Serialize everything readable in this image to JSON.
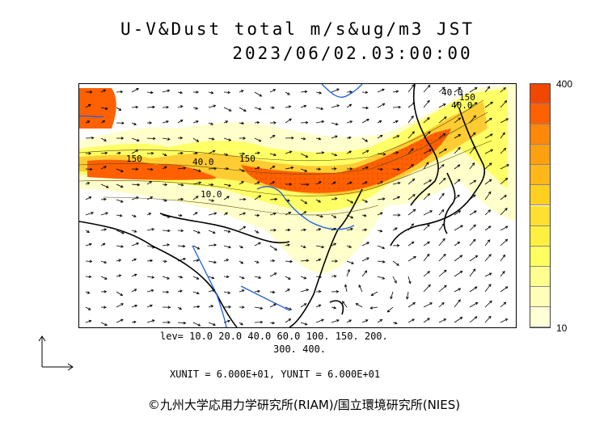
{
  "title": {
    "line1": "U-V&Dust total m/s&ug/m3 JST",
    "line2": "2023/06/02.03:00:00"
  },
  "legend": {
    "max_label": "400",
    "min_label": "10",
    "colors": [
      "#ffffd8",
      "#ffffb8",
      "#ffff90",
      "#ffff60",
      "#fff040",
      "#ffe030",
      "#ffd020",
      "#ffb818",
      "#ffa010",
      "#ff8808",
      "#ff6000",
      "#f04800"
    ]
  },
  "levels_line1": "lev= 10.0 20.0 40.0 60.0 100. 150. 200.",
  "levels_line2": "300. 400.",
  "units_line": "XUNIT = 6.000E+01, YUNIT = 6.000E+01",
  "contour_labels": [
    "150",
    "40.0",
    "150",
    "40.0",
    "10.0",
    "40.0",
    "150"
  ],
  "copyright": "©九州大学応用力学研究所(RIAM)/国立環境研究所(NIES)",
  "colors": {
    "coast": "#000000",
    "rivers": "#1f5fe0",
    "high_dust": "#ff5a00",
    "low_dust": "#ffff99"
  }
}
